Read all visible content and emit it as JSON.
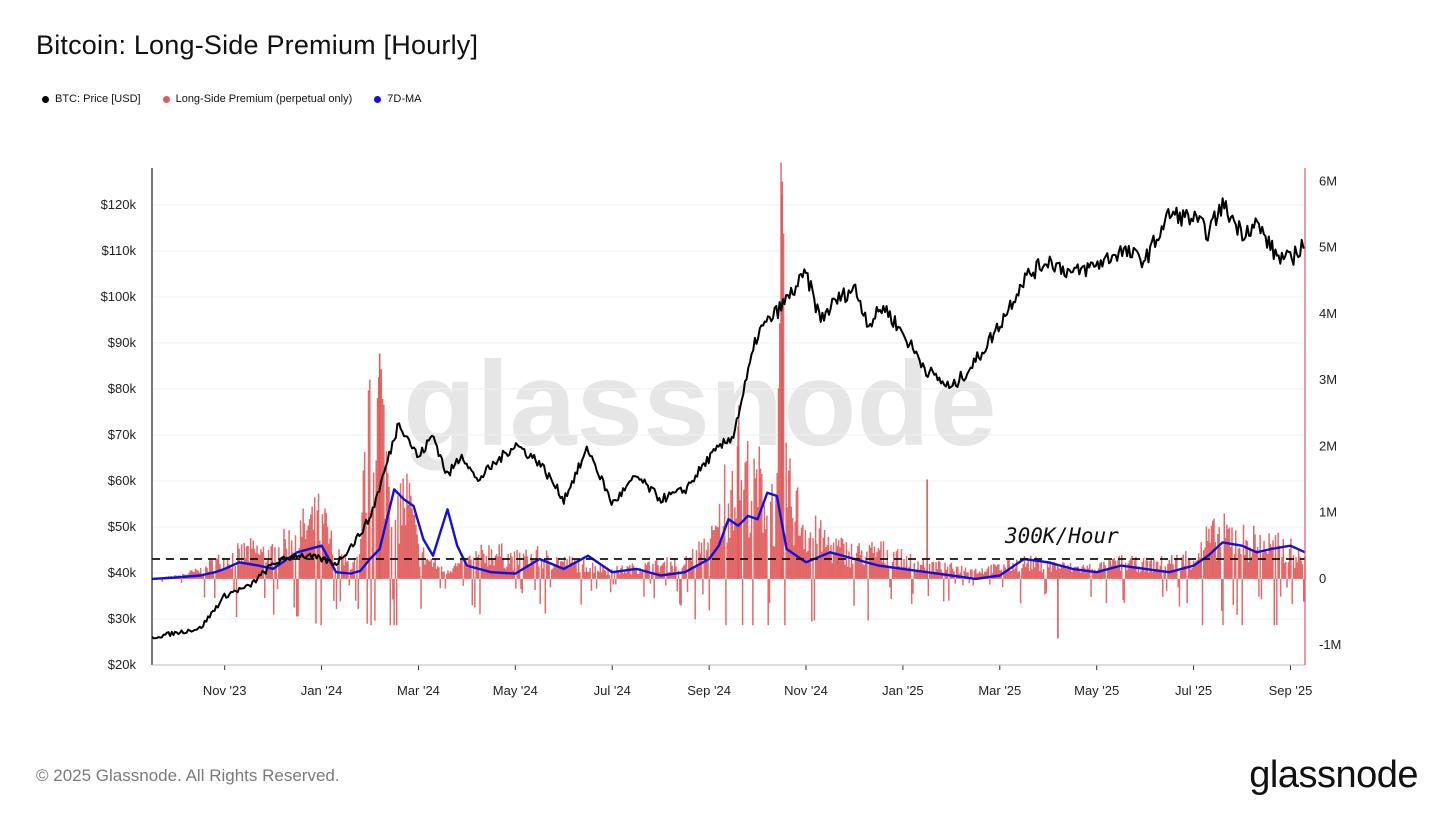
{
  "page": {
    "title": "Bitcoin: Long-Side Premium [Hourly]",
    "copyright": "© 2025 Glassnode. All Rights Reserved.",
    "brand": "glassnode",
    "watermark": "glassnode"
  },
  "legend": [
    {
      "label": "BTC: Price [USD]",
      "color": "#000000"
    },
    {
      "label": "Long-Side Premium (perpetual only)",
      "color": "#e05a5a"
    },
    {
      "label": "7D-MA",
      "color": "#1010e0"
    }
  ],
  "chart_data": {
    "type": "line",
    "title": "Bitcoin: Long-Side Premium [Hourly]",
    "x_ticks": [
      "Nov '23",
      "Jan '24",
      "Mar '24",
      "May '24",
      "Jul '24",
      "Sep '24",
      "Nov '24",
      "Jan '25",
      "Mar '25",
      "May '25",
      "Jul '25",
      "Sep '25"
    ],
    "x_range_months": [
      -1.5,
      22.3
    ],
    "left_axis": {
      "label": "BTC: Price [USD]",
      "ylim": [
        20000,
        128000
      ],
      "ticks": [
        "$20k",
        "$30k",
        "$40k",
        "$50k",
        "$60k",
        "$70k",
        "$80k",
        "$90k",
        "$100k",
        "$110k",
        "$120k"
      ],
      "tick_values": [
        20000,
        30000,
        40000,
        50000,
        60000,
        70000,
        80000,
        90000,
        100000,
        110000,
        120000
      ]
    },
    "right_axis": {
      "label": "Long-Side Premium",
      "ylim": [
        -1300000,
        6200000
      ],
      "ticks": [
        "-1M",
        "0",
        "1M",
        "2M",
        "3M",
        "4M",
        "5M",
        "6M"
      ],
      "tick_values": [
        -1000000,
        0,
        1000000,
        2000000,
        3000000,
        4000000,
        5000000,
        6000000
      ]
    },
    "series": [
      {
        "name": "BTC: Price [USD]",
        "color": "#000000",
        "axis": "left",
        "x": [
          -1.5,
          -1.0,
          -0.5,
          0.0,
          0.2,
          0.5,
          1.0,
          1.5,
          2.0,
          2.3,
          2.7,
          3.0,
          3.3,
          3.6,
          4.0,
          4.3,
          4.6,
          4.9,
          5.2,
          5.5,
          6.0,
          6.5,
          7.0,
          7.5,
          8.0,
          8.5,
          9.0,
          9.5,
          10.0,
          10.5,
          11.0,
          11.5,
          12.0,
          12.3,
          12.6,
          13.0,
          13.3,
          13.6,
          14.0,
          14.5,
          15.0,
          15.5,
          16.0,
          16.5,
          17.0,
          17.5,
          18.0,
          18.5,
          19.0,
          19.5,
          20.0,
          20.3,
          20.6,
          21.0,
          21.3,
          21.7,
          22.0,
          22.3
        ],
        "values": [
          26000,
          27000,
          28000,
          35000,
          36000,
          37000,
          42000,
          44000,
          43000,
          42000,
          47000,
          52000,
          62000,
          73000,
          65000,
          70000,
          61000,
          66000,
          60000,
          63000,
          68000,
          64000,
          56000,
          67000,
          55000,
          61000,
          56000,
          58000,
          65000,
          70000,
          92000,
          98000,
          105000,
          95000,
          99000,
          102000,
          94000,
          98000,
          92000,
          84000,
          80000,
          86000,
          94000,
          104000,
          108000,
          105000,
          107000,
          110000,
          108000,
          118000,
          117000,
          114000,
          120000,
          114000,
          116000,
          109000,
          108000,
          112000
        ]
      },
      {
        "name": "Long-Side Premium (perpetual only)",
        "color": "#e05a5a",
        "axis": "right",
        "x": [
          -1.5,
          -1.0,
          -0.5,
          -0.2,
          0.0,
          0.5,
          1.0,
          1.5,
          2.0,
          2.3,
          2.6,
          2.8,
          2.9,
          3.0,
          3.1,
          3.2,
          3.3,
          3.4,
          3.5,
          3.6,
          3.8,
          4.0,
          4.2,
          4.5,
          5.0,
          5.5,
          6.0,
          6.5,
          7.0,
          7.5,
          8.0,
          8.5,
          9.0,
          9.5,
          9.8,
          10.0,
          10.2,
          10.3,
          10.4,
          10.6,
          10.8,
          11.0,
          11.2,
          11.4,
          11.5,
          11.6,
          12.0,
          12.5,
          13.0,
          13.5,
          14.0,
          14.5,
          15.0,
          15.5,
          16.0,
          16.5,
          17.0,
          17.5,
          18.0,
          18.5,
          19.0,
          19.5,
          20.0,
          20.3,
          20.6,
          21.0,
          21.3,
          21.6,
          22.0,
          22.3
        ],
        "values": [
          0,
          50000,
          150000,
          300000,
          350000,
          500000,
          450000,
          800000,
          1100000,
          400000,
          250000,
          350000,
          2100000,
          2500000,
          1900000,
          3400000,
          2300000,
          1700000,
          1200000,
          1400000,
          1400000,
          500000,
          350000,
          150000,
          300000,
          500000,
          350000,
          400000,
          300000,
          250000,
          150000,
          200000,
          250000,
          300000,
          500000,
          600000,
          900000,
          1500000,
          1600000,
          2200000,
          1800000,
          1700000,
          1500000,
          1100000,
          5800000,
          1600000,
          900000,
          600000,
          450000,
          500000,
          350000,
          250000,
          200000,
          150000,
          200000,
          300000,
          250000,
          200000,
          200000,
          300000,
          250000,
          300000,
          400000,
          700000,
          800000,
          750000,
          650000,
          600000,
          500000,
          300000
        ]
      },
      {
        "name": "7D-MA",
        "color": "#1010e0",
        "axis": "right",
        "x": [
          -1.5,
          -1.0,
          -0.5,
          -0.2,
          0.0,
          0.3,
          0.7,
          1.0,
          1.5,
          2.0,
          2.3,
          2.6,
          2.8,
          3.0,
          3.2,
          3.5,
          3.7,
          3.9,
          4.1,
          4.3,
          4.6,
          4.8,
          5.0,
          5.5,
          6.0,
          6.5,
          7.0,
          7.5,
          8.0,
          8.5,
          9.0,
          9.5,
          10.0,
          10.2,
          10.4,
          10.6,
          10.8,
          11.0,
          11.2,
          11.4,
          11.6,
          11.8,
          12.0,
          12.5,
          13.0,
          13.5,
          14.0,
          14.5,
          15.0,
          15.5,
          16.0,
          16.5,
          17.0,
          17.5,
          18.0,
          18.5,
          19.0,
          19.5,
          20.0,
          20.3,
          20.6,
          21.0,
          21.3,
          21.6,
          22.0,
          22.3
        ],
        "values": [
          0,
          20000,
          50000,
          100000,
          150000,
          250000,
          200000,
          150000,
          400000,
          500000,
          100000,
          80000,
          120000,
          300000,
          450000,
          1350000,
          1200000,
          1100000,
          600000,
          350000,
          1050000,
          500000,
          200000,
          100000,
          80000,
          300000,
          150000,
          350000,
          100000,
          150000,
          50000,
          100000,
          300000,
          500000,
          900000,
          800000,
          950000,
          900000,
          1300000,
          1250000,
          450000,
          350000,
          250000,
          400000,
          300000,
          200000,
          150000,
          100000,
          50000,
          0,
          50000,
          300000,
          250000,
          150000,
          100000,
          200000,
          150000,
          100000,
          200000,
          350000,
          550000,
          500000,
          400000,
          450000,
          500000,
          400000
        ]
      }
    ],
    "annotation": {
      "text": "300K/Hour",
      "value": 300000,
      "axis": "right",
      "style": "dashed"
    }
  }
}
